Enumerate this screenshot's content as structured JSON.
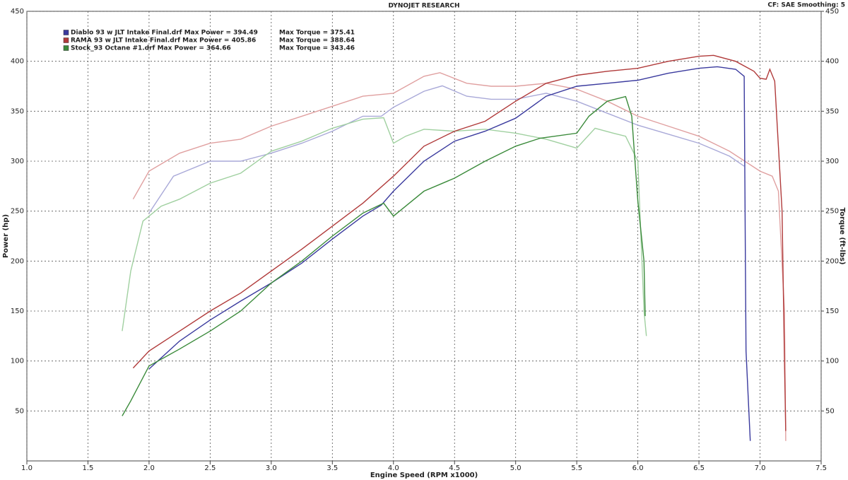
{
  "chart_data": {
    "type": "line",
    "title": "DYNOJET RESEARCH",
    "subtitle": "CF: SAE  Smoothing: 5",
    "x_label": "Engine Speed (RPM x1000)",
    "y_label": "Power (hp)",
    "y2_label": "Torque (ft-lbs)",
    "xlim": [
      1,
      7.5
    ],
    "xticks": [
      {
        "value": 1,
        "label": "1.0"
      },
      1.5,
      {
        "value": 2,
        "label": "2.0"
      },
      2.5,
      {
        "value": 3,
        "label": "3.0"
      },
      3.5,
      {
        "value": 4,
        "label": "4.0"
      },
      4.5,
      {
        "value": 5,
        "label": "5.0"
      },
      5.5,
      {
        "value": 6,
        "label": "6.0"
      },
      6.5,
      {
        "value": 7,
        "label": "7.0"
      },
      7.5
    ],
    "ylim": [
      0,
      450
    ],
    "yticks": [
      50,
      100,
      150,
      200,
      250,
      300,
      350,
      400,
      450
    ],
    "y2lim": [
      0,
      450
    ],
    "y2ticks": [
      50,
      100,
      150,
      200,
      250,
      300,
      350,
      400,
      450
    ],
    "grid": true,
    "legend": [
      {
        "text": "Diablo 93 w JLT Intake Final.drf Max Power = 394.49",
        "torque_text": "Max Torque = 375.41",
        "color": "#3a3a9e"
      },
      {
        "text": "RAMA 93 w JLT Intake Final.drf Max Power = 405.86",
        "torque_text": "Max Torque = 388.64",
        "color": "#b03a3a"
      },
      {
        "text": "Stock_93 Octane #1.drf Max Power = 364.66",
        "torque_text": "Max Torque = 343.46",
        "color": "#3a8a3a"
      }
    ],
    "series": [
      {
        "color": "#a9a9d8",
        "axis": "y2",
        "x": [
          2.0,
          2.2,
          2.5,
          2.75,
          3.0,
          3.25,
          3.5,
          3.75,
          3.9,
          4.0,
          4.25,
          4.4,
          4.6,
          4.8,
          5.0,
          5.25,
          5.5,
          5.75,
          6.0,
          6.25,
          6.5,
          6.75,
          6.87
        ],
        "values": [
          248,
          285,
          300,
          300,
          308,
          318,
          330,
          345,
          345,
          354,
          370,
          375.4,
          365,
          362,
          362,
          368,
          360,
          348,
          336,
          327,
          318,
          305,
          295
        ]
      },
      {
        "color": "#e0a0a0",
        "axis": "y2",
        "x": [
          1.87,
          2.0,
          2.25,
          2.5,
          2.75,
          3.0,
          3.25,
          3.5,
          3.75,
          4.0,
          4.25,
          4.38,
          4.6,
          4.8,
          5.0,
          5.25,
          5.5,
          5.75,
          6.0,
          6.25,
          6.5,
          6.75,
          7.0,
          7.1,
          7.15,
          7.2,
          7.21
        ],
        "values": [
          262,
          290,
          308,
          318,
          322,
          335,
          345,
          355,
          365,
          368,
          385,
          388.6,
          378,
          375,
          375,
          378,
          372,
          360,
          345,
          335,
          325,
          310,
          290,
          285,
          270,
          150,
          20
        ]
      },
      {
        "color": "#a0d0a0",
        "axis": "y2",
        "x": [
          1.78,
          1.85,
          1.95,
          2.1,
          2.25,
          2.5,
          2.75,
          3.0,
          3.25,
          3.5,
          3.75,
          3.92,
          4.0,
          4.1,
          4.25,
          4.5,
          4.75,
          5.0,
          5.25,
          5.5,
          5.65,
          5.8,
          5.9,
          6.0,
          6.05,
          6.07
        ],
        "values": [
          130,
          190,
          240,
          255,
          262,
          278,
          288,
          310,
          320,
          333,
          342,
          343.5,
          318,
          325,
          332,
          330,
          332,
          328,
          322,
          313,
          333,
          328,
          325,
          300,
          150,
          125
        ]
      },
      {
        "color": "#3a3a9e",
        "x": [
          2.0,
          2.25,
          2.5,
          2.75,
          3.0,
          3.25,
          3.5,
          3.75,
          3.9,
          4.0,
          4.25,
          4.5,
          4.75,
          5.0,
          5.25,
          5.5,
          5.75,
          6.0,
          6.25,
          6.5,
          6.65,
          6.8,
          6.87,
          6.88,
          6.885,
          6.92
        ],
        "values": [
          92,
          120,
          141,
          160,
          178,
          198,
          222,
          245,
          256,
          270,
          300,
          320,
          330,
          343,
          365,
          375,
          378,
          381,
          388,
          393,
          394.5,
          392,
          385,
          200,
          110,
          20
        ]
      },
      {
        "color": "#b03a3a",
        "x": [
          1.87,
          2.0,
          2.25,
          2.5,
          2.75,
          3.0,
          3.25,
          3.5,
          3.75,
          4.0,
          4.25,
          4.5,
          4.75,
          5.0,
          5.25,
          5.5,
          5.75,
          6.0,
          6.25,
          6.5,
          6.62,
          6.8,
          6.95,
          7.0,
          7.05,
          7.08,
          7.12,
          7.18,
          7.2,
          7.21
        ],
        "values": [
          93,
          110,
          130,
          150,
          168,
          190,
          212,
          235,
          258,
          285,
          315,
          330,
          340,
          360,
          378,
          386,
          390,
          393,
          400,
          405,
          405.9,
          400,
          390,
          383,
          382,
          392,
          380,
          250,
          100,
          30
        ]
      },
      {
        "color": "#3a8a3a",
        "x": [
          1.78,
          1.85,
          2.0,
          2.25,
          2.5,
          2.75,
          3.0,
          3.25,
          3.5,
          3.75,
          3.92,
          4.0,
          4.1,
          4.25,
          4.5,
          4.75,
          5.0,
          5.2,
          5.5,
          5.6,
          5.75,
          5.9,
          5.95,
          6.0,
          6.05,
          6.06
        ],
        "values": [
          45,
          60,
          95,
          112,
          130,
          150,
          178,
          200,
          225,
          248,
          258,
          245,
          255,
          270,
          283,
          300,
          315,
          323,
          328,
          345,
          360,
          364.7,
          345,
          260,
          200,
          145
        ]
      }
    ]
  }
}
